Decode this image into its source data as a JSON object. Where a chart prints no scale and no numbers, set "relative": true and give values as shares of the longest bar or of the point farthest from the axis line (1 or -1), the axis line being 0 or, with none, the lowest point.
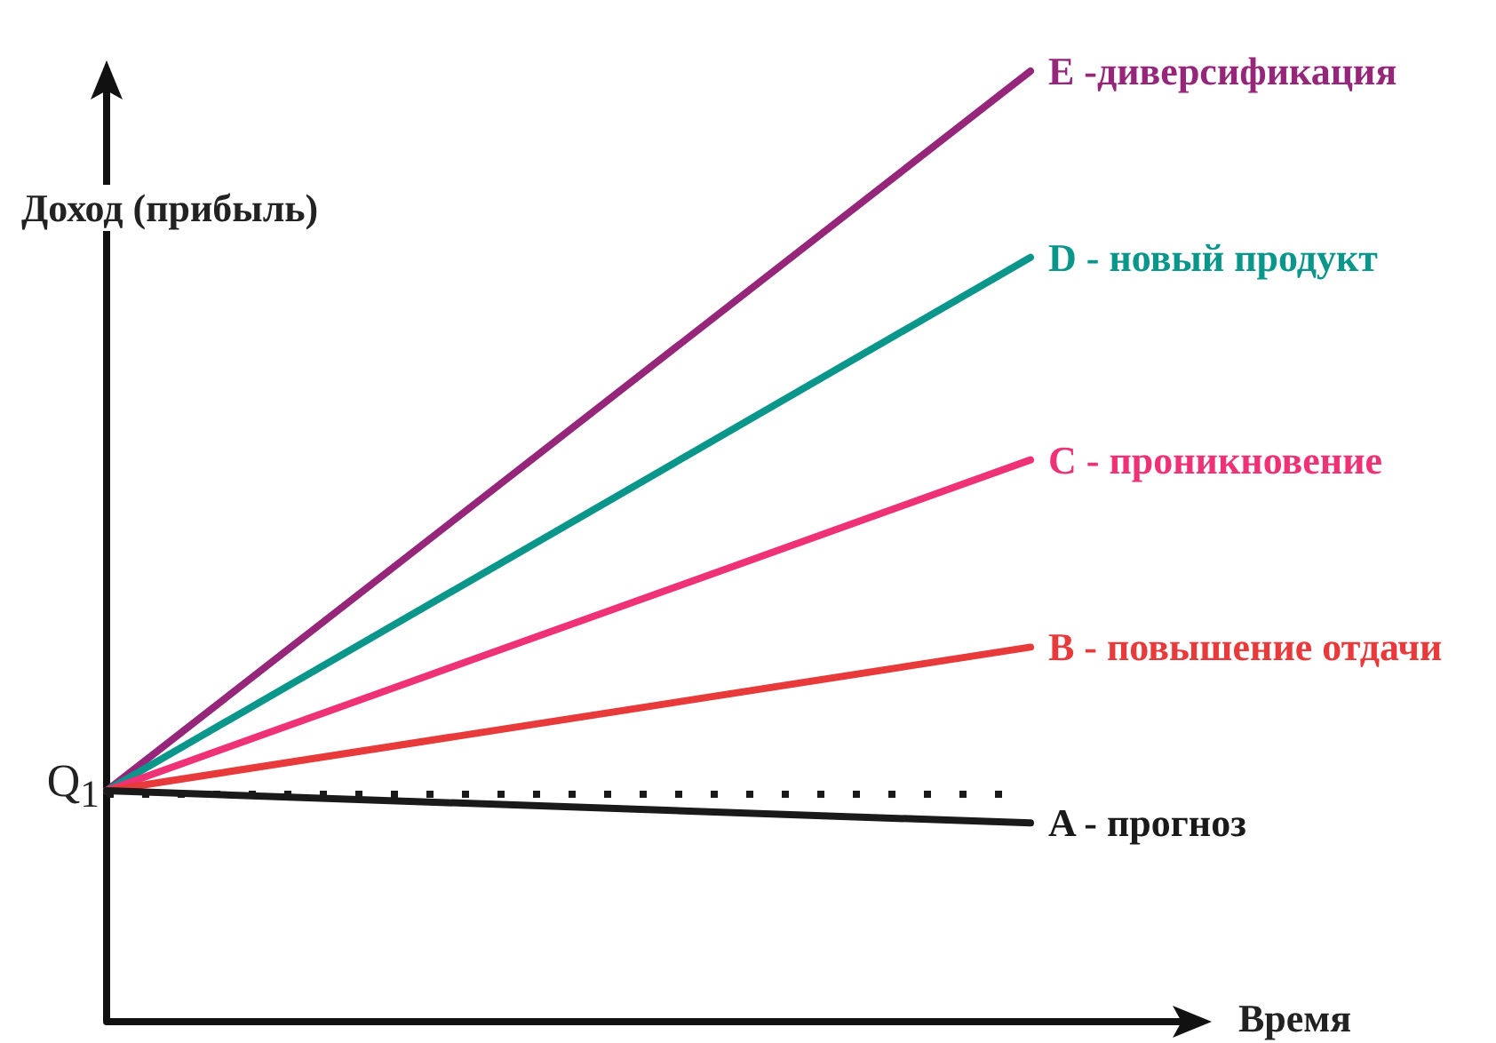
{
  "chart_data": {
    "type": "line",
    "relative": true,
    "xlabel": "Время",
    "ylabel": "Доход (прибыль)",
    "categories": [
      null,
      null
    ],
    "grid": false,
    "legend": false,
    "marker": "none",
    "line_style": "solid",
    "series": [
      {
        "name": "E -диверсификация",
        "color": "#96267a",
        "values": [
          0.243,
          1
        ]
      },
      {
        "name": "D - новый продукт",
        "color": "#0a968a",
        "values": [
          0.243,
          0.804
        ]
      },
      {
        "name": "C - проникновение",
        "color": "#ee3275",
        "values": [
          0.243,
          0.591
        ]
      },
      {
        "name": "B - повышение отдачи",
        "color": "#e83a3a",
        "values": [
          0.243,
          0.394
        ]
      },
      {
        "name": "A - прогноз",
        "color": "#1a1a1a",
        "values": [
          0.243,
          0.209
        ]
      }
    ],
    "ref_lines": [
      {
        "axis": "y",
        "value": 0.243,
        "label": null,
        "color": "#1a1a1a",
        "line_style": "dotted"
      },
      {
        "axis": "y",
        "value": 0,
        "label": null,
        "color": "#111111",
        "line_style": "solid"
      }
    ],
    "annotations": [
      "Q$_{1}$"
    ]
  }
}
